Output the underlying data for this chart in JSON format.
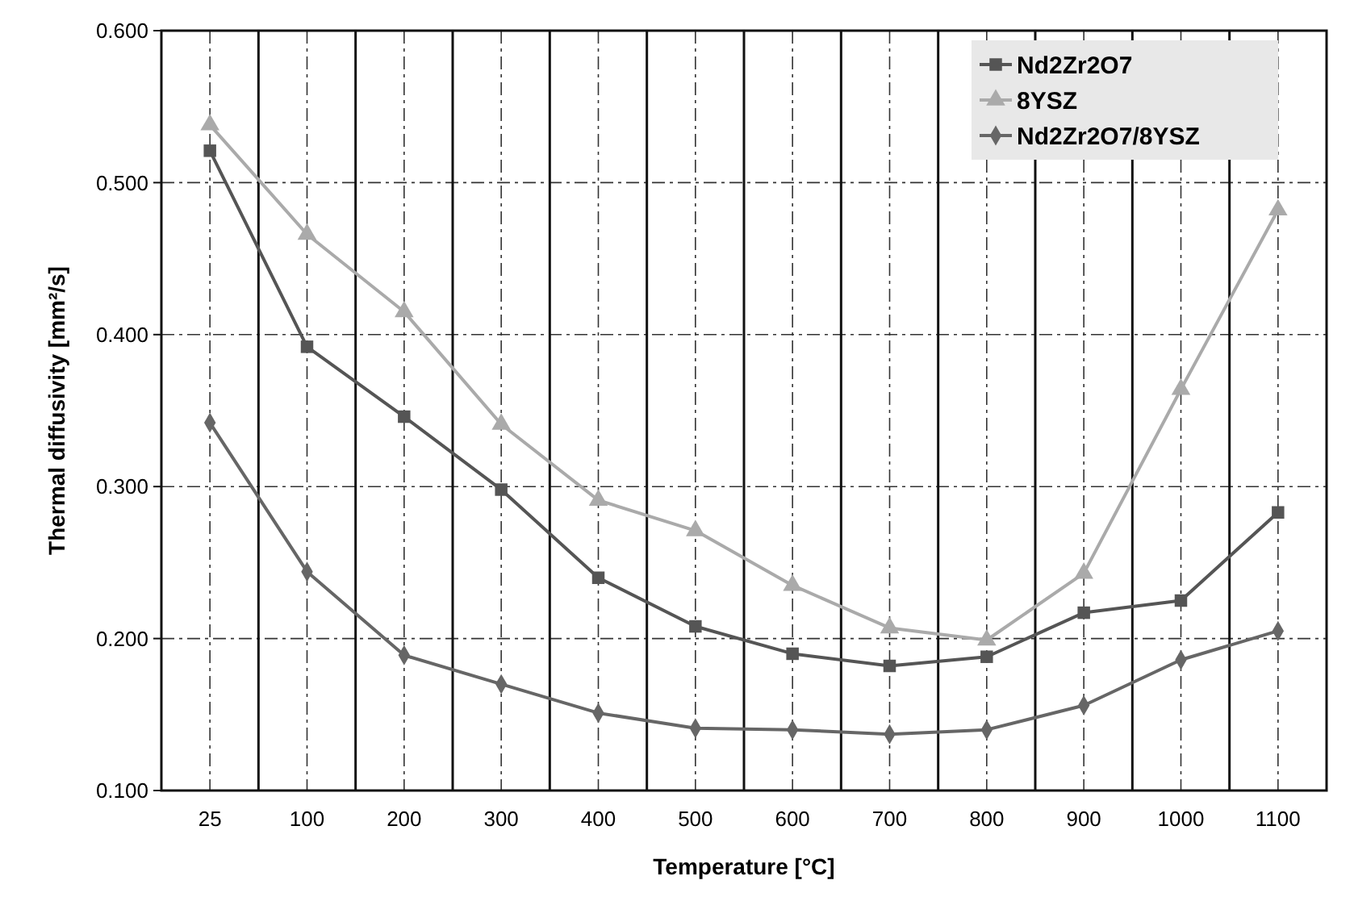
{
  "chart_data": {
    "type": "line",
    "xlabel": "Temperature [°C]",
    "ylabel": "Thermal diffusivity [mm²/s]",
    "categories": [
      "25",
      "100",
      "200",
      "300",
      "400",
      "500",
      "600",
      "700",
      "800",
      "900",
      "1000",
      "1100"
    ],
    "series": [
      {
        "name": "Nd2Zr2O7",
        "color": "#555555",
        "marker": "square",
        "values": [
          0.521,
          0.392,
          0.346,
          0.298,
          0.24,
          0.208,
          0.19,
          0.182,
          0.188,
          0.217,
          0.225,
          0.283
        ]
      },
      {
        "name": "8YSZ",
        "color": "#aaaaaa",
        "marker": "triangle",
        "values": [
          0.538,
          0.466,
          0.415,
          0.341,
          0.291,
          0.271,
          0.235,
          0.207,
          0.199,
          0.243,
          0.364,
          0.482
        ]
      },
      {
        "name": "Nd2Zr2O7/8YSZ",
        "color": "#666666",
        "marker": "diamond",
        "values": [
          0.342,
          0.244,
          0.189,
          0.17,
          0.151,
          0.141,
          0.14,
          0.137,
          0.14,
          0.156,
          0.186,
          0.205
        ]
      }
    ],
    "ylim": [
      0.1,
      0.6
    ],
    "yticks": [
      {
        "value": 0.1,
        "label": "0.100"
      },
      {
        "value": 0.2,
        "label": "0.200"
      },
      {
        "value": 0.3,
        "label": "0.300"
      },
      {
        "value": 0.4,
        "label": "0.400"
      },
      {
        "value": 0.5,
        "label": "0.500"
      },
      {
        "value": 0.6,
        "label": "0.600"
      }
    ],
    "grid": true,
    "legend": "top right"
  }
}
